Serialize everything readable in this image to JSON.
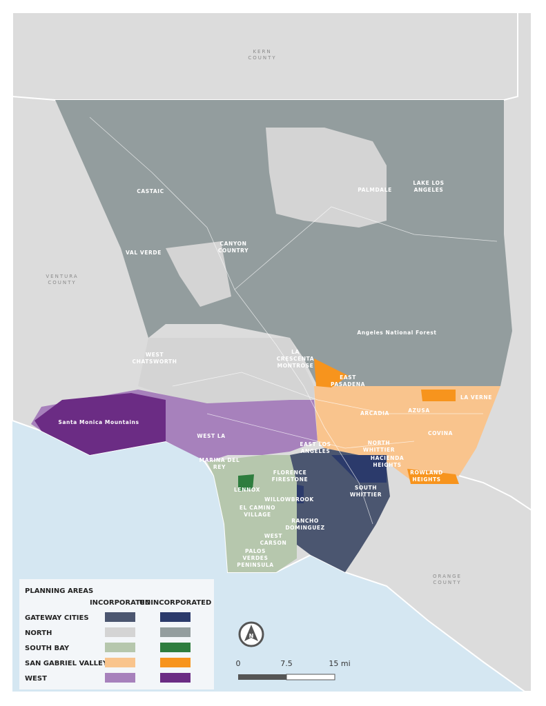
{
  "counties": [
    {
      "lines": [
        "KERN",
        "COUNTY"
      ]
    },
    {
      "lines": [
        "VENTURA",
        "COUNTY"
      ]
    },
    {
      "lines": [
        "ORANGE",
        "COUNTY"
      ]
    }
  ],
  "places": [
    {
      "lines": [
        "CASTAIC"
      ]
    },
    {
      "lines": [
        "VAL VERDE"
      ]
    },
    {
      "lines": [
        "CANYON",
        "COUNTRY"
      ]
    },
    {
      "lines": [
        "PALMDALE"
      ]
    },
    {
      "lines": [
        "LAKE LOS",
        "ANGELES"
      ]
    },
    {
      "lines": [
        "Angeles National Forest"
      ]
    },
    {
      "lines": [
        "WEST",
        "CHATSWORTH"
      ]
    },
    {
      "lines": [
        "LA",
        "CRESCENTA",
        "MONTROSE"
      ]
    },
    {
      "lines": [
        "EAST",
        "PASADENA"
      ]
    },
    {
      "lines": [
        "LA VERNE"
      ]
    },
    {
      "lines": [
        "ARCADIA"
      ]
    },
    {
      "lines": [
        "AZUSA"
      ]
    },
    {
      "lines": [
        "COVINA"
      ]
    },
    {
      "lines": [
        "Santa Monica Mountains"
      ]
    },
    {
      "lines": [
        "WEST LA"
      ]
    },
    {
      "lines": [
        "EAST LOS",
        "ANGELES"
      ]
    },
    {
      "lines": [
        "NORTH",
        "WHITTIER"
      ]
    },
    {
      "lines": [
        "HACIENDA",
        "HEIGHTS"
      ]
    },
    {
      "lines": [
        "ROWLAND",
        "HEIGHTS"
      ]
    },
    {
      "lines": [
        "MARINA DEL",
        "REY"
      ]
    },
    {
      "lines": [
        "FLORENCE",
        "FIRESTONE"
      ]
    },
    {
      "lines": [
        "SOUTH",
        "WHITTIER"
      ]
    },
    {
      "lines": [
        "LENNOX"
      ]
    },
    {
      "lines": [
        "WILLOWBROOK"
      ]
    },
    {
      "lines": [
        "EL CAMINO",
        "VILLAGE"
      ]
    },
    {
      "lines": [
        "RANCHO",
        "DOMINGUEZ"
      ]
    },
    {
      "lines": [
        "WEST",
        "CARSON"
      ]
    },
    {
      "lines": [
        "PALOS",
        "VERDES",
        "PENINSULA"
      ]
    }
  ],
  "legend": {
    "title": "PLANNING AREAS",
    "columns": [
      "INCORPORATED",
      "UNINCORPORATED"
    ],
    "areas": [
      {
        "name": "GATEWAY CITIES",
        "incorporated": "#4b5670",
        "unincorporated": "#2b3a6b"
      },
      {
        "name": "NORTH",
        "incorporated": "#d4d4d4",
        "unincorporated": "#939d9e"
      },
      {
        "name": "SOUTH BAY",
        "incorporated": "#b6c7ad",
        "unincorporated": "#2e7d3e"
      },
      {
        "name": "SAN GABRIEL VALLEY",
        "incorporated": "#f9c48d",
        "unincorporated": "#f7941d"
      },
      {
        "name": "WEST",
        "incorporated": "#a781bc",
        "unincorporated": "#6b2c84"
      }
    ]
  },
  "north_arrow": "N",
  "scale": [
    "0",
    "7.5",
    "15 mi"
  ]
}
